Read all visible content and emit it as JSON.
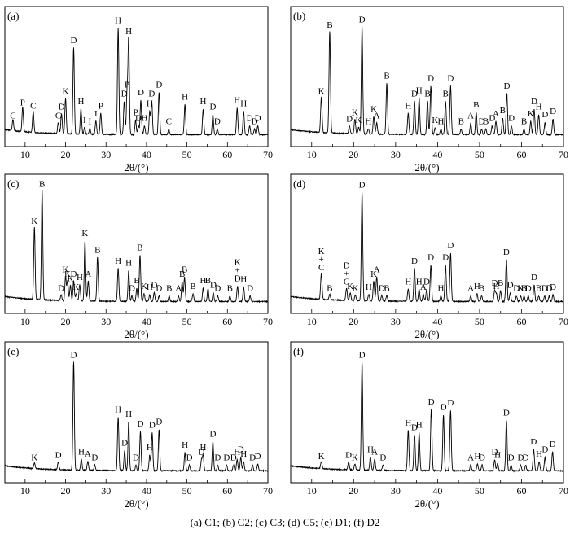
{
  "caption": "(a) C1; (b) C2; (c) C3; (d) C5; (e) D1; (f) D2",
  "chart_data": [
    {
      "type": "line",
      "panel": "(a)",
      "xlabel": "2θ/(°)",
      "xlim": [
        5,
        70
      ],
      "xticks": [
        10,
        20,
        30,
        40,
        50,
        60,
        70
      ],
      "peaks": [
        {
          "x": 7.0,
          "h": 0.1,
          "label": "C"
        },
        {
          "x": 9.4,
          "h": 0.22,
          "label": "P"
        },
        {
          "x": 12.0,
          "h": 0.19,
          "label": "C"
        },
        {
          "x": 18.2,
          "h": 0.1,
          "label": "C"
        },
        {
          "x": 19.0,
          "h": 0.18,
          "label": "D"
        },
        {
          "x": 20.0,
          "h": 0.32,
          "label": "K"
        },
        {
          "x": 22.0,
          "h": 0.78,
          "label": "D"
        },
        {
          "x": 23.8,
          "h": 0.23,
          "label": "H"
        },
        {
          "x": 24.7,
          "h": 0.06,
          "label": "I"
        },
        {
          "x": 26.0,
          "h": 0.05,
          "label": "I"
        },
        {
          "x": 27.5,
          "h": 0.12,
          "label": "I"
        },
        {
          "x": 28.7,
          "h": 0.19,
          "label": "P"
        },
        {
          "x": 33.0,
          "h": 0.96,
          "label": "H"
        },
        {
          "x": 34.5,
          "h": 0.3,
          "label": "D"
        },
        {
          "x": 35.2,
          "h": 0.38,
          "label": "P"
        },
        {
          "x": 35.6,
          "h": 0.86,
          "label": "H"
        },
        {
          "x": 37.3,
          "h": 0.13,
          "label": "P"
        },
        {
          "x": 38.0,
          "h": 0.08,
          "label": "D"
        },
        {
          "x": 38.6,
          "h": 0.31,
          "label": "D"
        },
        {
          "x": 39.5,
          "h": 0.08,
          "label": "H"
        },
        {
          "x": 40.8,
          "h": 0.21,
          "label": "H"
        },
        {
          "x": 41.3,
          "h": 0.3,
          "label": "D"
        },
        {
          "x": 43.1,
          "h": 0.38,
          "label": "D"
        },
        {
          "x": 45.5,
          "h": 0.05,
          "label": "C"
        },
        {
          "x": 49.5,
          "h": 0.27,
          "label": "H"
        },
        {
          "x": 54.0,
          "h": 0.23,
          "label": "H"
        },
        {
          "x": 56.4,
          "h": 0.18,
          "label": "D"
        },
        {
          "x": 57.5,
          "h": 0.05,
          "label": "D"
        },
        {
          "x": 62.4,
          "h": 0.24,
          "label": "H"
        },
        {
          "x": 64.0,
          "h": 0.21,
          "label": "H"
        },
        {
          "x": 65.5,
          "h": 0.08,
          "label": "D"
        },
        {
          "x": 66.7,
          "h": 0.05,
          "label": "D"
        },
        {
          "x": 67.5,
          "h": 0.08,
          "label": "D"
        }
      ]
    },
    {
      "type": "line",
      "panel": "(b)",
      "xlabel": "2θ/(°)",
      "xlim": [
        5,
        70
      ],
      "xticks": [
        10,
        20,
        30,
        40,
        50,
        60,
        70
      ],
      "peaks": [
        {
          "x": 12.3,
          "h": 0.32,
          "label": "K"
        },
        {
          "x": 14.3,
          "h": 0.92,
          "label": "B"
        },
        {
          "x": 19.0,
          "h": 0.07,
          "label": "D"
        },
        {
          "x": 20.3,
          "h": 0.13,
          "label": "K"
        },
        {
          "x": 21.2,
          "h": 0.06,
          "label": "K"
        },
        {
          "x": 22.0,
          "h": 0.97,
          "label": "D"
        },
        {
          "x": 23.5,
          "h": 0.05,
          "label": "H"
        },
        {
          "x": 24.8,
          "h": 0.16,
          "label": "K"
        },
        {
          "x": 25.5,
          "h": 0.1,
          "label": "A"
        },
        {
          "x": 27.9,
          "h": 0.46,
          "label": "B"
        },
        {
          "x": 33.0,
          "h": 0.19,
          "label": "H"
        },
        {
          "x": 34.5,
          "h": 0.3,
          "label": "D"
        },
        {
          "x": 35.6,
          "h": 0.33,
          "label": "H"
        },
        {
          "x": 37.6,
          "h": 0.3,
          "label": "B"
        },
        {
          "x": 38.4,
          "h": 0.44,
          "label": "D"
        },
        {
          "x": 39.4,
          "h": 0.06,
          "label": "K"
        },
        {
          "x": 40.8,
          "h": 0.05,
          "label": "H"
        },
        {
          "x": 41.9,
          "h": 0.3,
          "label": "B"
        },
        {
          "x": 43.1,
          "h": 0.44,
          "label": "D"
        },
        {
          "x": 45.6,
          "h": 0.05,
          "label": "B"
        },
        {
          "x": 47.9,
          "h": 0.1,
          "label": "A"
        },
        {
          "x": 49.2,
          "h": 0.2,
          "label": "B"
        },
        {
          "x": 50.5,
          "h": 0.05,
          "label": "D"
        },
        {
          "x": 51.5,
          "h": 0.05,
          "label": "B"
        },
        {
          "x": 53.0,
          "h": 0.08,
          "label": "D"
        },
        {
          "x": 53.9,
          "h": 0.12,
          "label": "A"
        },
        {
          "x": 55.5,
          "h": 0.15,
          "label": "B"
        },
        {
          "x": 56.5,
          "h": 0.37,
          "label": "D"
        },
        {
          "x": 57.6,
          "h": 0.08,
          "label": "D"
        },
        {
          "x": 60.6,
          "h": 0.05,
          "label": "B"
        },
        {
          "x": 62.2,
          "h": 0.12,
          "label": "K"
        },
        {
          "x": 63.0,
          "h": 0.23,
          "label": "D"
        },
        {
          "x": 64.1,
          "h": 0.18,
          "label": "H"
        },
        {
          "x": 65.6,
          "h": 0.11,
          "label": "D"
        },
        {
          "x": 67.5,
          "h": 0.14,
          "label": "D"
        }
      ]
    },
    {
      "type": "line",
      "panel": "(c)",
      "xlabel": "2θ/(°)",
      "xlim": [
        5,
        70
      ],
      "xticks": [
        10,
        20,
        30,
        40,
        50,
        60,
        70
      ],
      "peaks": [
        {
          "x": 12.3,
          "h": 0.66,
          "label": "K"
        },
        {
          "x": 14.2,
          "h": 1.0,
          "label": "B"
        },
        {
          "x": 18.9,
          "h": 0.05,
          "label": "D"
        },
        {
          "x": 20.0,
          "h": 0.22,
          "label": "K"
        },
        {
          "x": 20.5,
          "h": 0.18,
          "label": "K"
        },
        {
          "x": 21.2,
          "h": 0.14,
          "label": "K"
        },
        {
          "x": 22.0,
          "h": 0.18,
          "label": "D"
        },
        {
          "x": 22.6,
          "h": 0.06,
          "label": "K"
        },
        {
          "x": 23.5,
          "h": 0.15,
          "label": "H"
        },
        {
          "x": 24.8,
          "h": 0.55,
          "label": "K"
        },
        {
          "x": 25.6,
          "h": 0.18,
          "label": "A"
        },
        {
          "x": 27.9,
          "h": 0.4,
          "label": "B"
        },
        {
          "x": 33.0,
          "h": 0.3,
          "label": "H"
        },
        {
          "x": 35.6,
          "h": 0.28,
          "label": "H"
        },
        {
          "x": 36.4,
          "h": 0.05,
          "label": "D"
        },
        {
          "x": 37.6,
          "h": 0.12,
          "label": "B"
        },
        {
          "x": 38.4,
          "h": 0.42,
          "label": "B"
        },
        {
          "x": 39.4,
          "h": 0.07,
          "label": "K"
        },
        {
          "x": 40.8,
          "h": 0.06,
          "label": "H"
        },
        {
          "x": 41.9,
          "h": 0.08,
          "label": "D"
        },
        {
          "x": 43.1,
          "h": 0.05,
          "label": "D"
        },
        {
          "x": 45.6,
          "h": 0.05,
          "label": "B"
        },
        {
          "x": 47.9,
          "h": 0.05,
          "label": "A"
        },
        {
          "x": 48.8,
          "h": 0.18,
          "label": "B"
        },
        {
          "x": 49.4,
          "h": 0.22,
          "label": "B"
        },
        {
          "x": 51.5,
          "h": 0.07,
          "label": "B"
        },
        {
          "x": 54.0,
          "h": 0.12,
          "label": "H"
        },
        {
          "x": 55.2,
          "h": 0.12,
          "label": "B"
        },
        {
          "x": 56.5,
          "h": 0.08,
          "label": "D"
        },
        {
          "x": 57.6,
          "h": 0.05,
          "label": "D"
        },
        {
          "x": 60.6,
          "h": 0.05,
          "label": "B"
        },
        {
          "x": 62.5,
          "h": 0.14,
          "label": "K+D"
        },
        {
          "x": 64.0,
          "h": 0.13,
          "label": "H"
        },
        {
          "x": 65.6,
          "h": 0.05,
          "label": "D"
        }
      ]
    },
    {
      "type": "line",
      "panel": "(d)",
      "xlabel": "2θ/(°)",
      "xlim": [
        5,
        70
      ],
      "xticks": [
        10,
        20,
        30,
        40,
        50,
        60,
        70
      ],
      "peaks": [
        {
          "x": 12.3,
          "h": 0.24,
          "label": "K+C"
        },
        {
          "x": 14.3,
          "h": 0.05,
          "label": "B"
        },
        {
          "x": 18.3,
          "h": 0.11,
          "label": "D+C"
        },
        {
          "x": 19.2,
          "h": 0.07,
          "label": "K"
        },
        {
          "x": 20.4,
          "h": 0.05,
          "label": "K"
        },
        {
          "x": 22.0,
          "h": 0.99,
          "label": "D"
        },
        {
          "x": 23.6,
          "h": 0.06,
          "label": "H"
        },
        {
          "x": 24.8,
          "h": 0.18,
          "label": "K"
        },
        {
          "x": 25.5,
          "h": 0.22,
          "label": "A"
        },
        {
          "x": 26.7,
          "h": 0.05,
          "label": "D"
        },
        {
          "x": 27.9,
          "h": 0.05,
          "label": "B"
        },
        {
          "x": 33.0,
          "h": 0.11,
          "label": "H"
        },
        {
          "x": 34.5,
          "h": 0.3,
          "label": "D"
        },
        {
          "x": 35.6,
          "h": 0.11,
          "label": "H"
        },
        {
          "x": 36.6,
          "h": 0.06,
          "label": "A"
        },
        {
          "x": 37.4,
          "h": 0.11,
          "label": "D"
        },
        {
          "x": 38.4,
          "h": 0.33,
          "label": "D"
        },
        {
          "x": 40.8,
          "h": 0.05,
          "label": "H"
        },
        {
          "x": 41.9,
          "h": 0.33,
          "label": "D"
        },
        {
          "x": 43.1,
          "h": 0.44,
          "label": "D"
        },
        {
          "x": 47.9,
          "h": 0.05,
          "label": "A"
        },
        {
          "x": 49.4,
          "h": 0.07,
          "label": "H"
        },
        {
          "x": 50.5,
          "h": 0.05,
          "label": "B"
        },
        {
          "x": 53.6,
          "h": 0.1,
          "label": "D"
        },
        {
          "x": 54.0,
          "h": 0.07,
          "label": "H"
        },
        {
          "x": 55.0,
          "h": 0.1,
          "label": "B"
        },
        {
          "x": 56.4,
          "h": 0.38,
          "label": "D"
        },
        {
          "x": 57.3,
          "h": 0.08,
          "label": "D"
        },
        {
          "x": 58.8,
          "h": 0.05,
          "label": "D"
        },
        {
          "x": 59.8,
          "h": 0.05,
          "label": "K"
        },
        {
          "x": 60.6,
          "h": 0.05,
          "label": "B"
        },
        {
          "x": 61.6,
          "h": 0.05,
          "label": "D"
        },
        {
          "x": 63.0,
          "h": 0.15,
          "label": "D"
        },
        {
          "x": 64.1,
          "h": 0.05,
          "label": "B"
        },
        {
          "x": 65.5,
          "h": 0.05,
          "label": "D"
        },
        {
          "x": 66.6,
          "h": 0.05,
          "label": "D"
        },
        {
          "x": 67.5,
          "h": 0.06,
          "label": "D"
        }
      ]
    },
    {
      "type": "line",
      "panel": "(e)",
      "xlabel": "2θ/(°)",
      "xlim": [
        5,
        70
      ],
      "xticks": [
        10,
        20,
        30,
        40,
        50,
        60,
        70
      ],
      "peaks": [
        {
          "x": 12.3,
          "h": 0.05,
          "label": "K"
        },
        {
          "x": 18.2,
          "h": 0.07,
          "label": "D"
        },
        {
          "x": 22.0,
          "h": 0.97,
          "label": "D"
        },
        {
          "x": 23.9,
          "h": 0.1,
          "label": "H"
        },
        {
          "x": 25.5,
          "h": 0.08,
          "label": "A"
        },
        {
          "x": 27.2,
          "h": 0.05,
          "label": "D"
        },
        {
          "x": 33.0,
          "h": 0.48,
          "label": "H"
        },
        {
          "x": 34.6,
          "h": 0.18,
          "label": "D"
        },
        {
          "x": 35.6,
          "h": 0.44,
          "label": "H"
        },
        {
          "x": 37.4,
          "h": 0.05,
          "label": "D"
        },
        {
          "x": 38.5,
          "h": 0.35,
          "label": "D"
        },
        {
          "x": 40.8,
          "h": 0.14,
          "label": "H"
        },
        {
          "x": 41.4,
          "h": 0.34,
          "label": "D"
        },
        {
          "x": 43.1,
          "h": 0.37,
          "label": "D"
        },
        {
          "x": 49.5,
          "h": 0.16,
          "label": "H"
        },
        {
          "x": 50.6,
          "h": 0.05,
          "label": "D"
        },
        {
          "x": 53.6,
          "h": 0.1,
          "label": "D"
        },
        {
          "x": 54.0,
          "h": 0.14,
          "label": "H"
        },
        {
          "x": 56.4,
          "h": 0.26,
          "label": "D"
        },
        {
          "x": 57.6,
          "h": 0.05,
          "label": "D"
        },
        {
          "x": 59.8,
          "h": 0.05,
          "label": "D"
        },
        {
          "x": 61.5,
          "h": 0.05,
          "label": "D"
        },
        {
          "x": 62.4,
          "h": 0.1,
          "label": "H"
        },
        {
          "x": 63.3,
          "h": 0.12,
          "label": "D"
        },
        {
          "x": 64.0,
          "h": 0.08,
          "label": "H"
        },
        {
          "x": 66.2,
          "h": 0.05,
          "label": "D"
        },
        {
          "x": 67.5,
          "h": 0.06,
          "label": "D"
        }
      ]
    },
    {
      "type": "line",
      "panel": "(f)",
      "xlabel": "2θ/(°)",
      "xlim": [
        5,
        70
      ],
      "xticks": [
        10,
        20,
        30,
        40,
        50,
        60,
        70
      ],
      "peaks": [
        {
          "x": 12.3,
          "h": 0.06,
          "label": "K"
        },
        {
          "x": 18.8,
          "h": 0.07,
          "label": "D"
        },
        {
          "x": 20.3,
          "h": 0.05,
          "label": "K"
        },
        {
          "x": 22.0,
          "h": 0.97,
          "label": "D"
        },
        {
          "x": 24.0,
          "h": 0.12,
          "label": "H"
        },
        {
          "x": 25.0,
          "h": 0.1,
          "label": "A"
        },
        {
          "x": 27.0,
          "h": 0.05,
          "label": "D"
        },
        {
          "x": 33.0,
          "h": 0.36,
          "label": "H"
        },
        {
          "x": 34.5,
          "h": 0.32,
          "label": "D"
        },
        {
          "x": 35.6,
          "h": 0.34,
          "label": "H"
        },
        {
          "x": 38.5,
          "h": 0.55,
          "label": "D"
        },
        {
          "x": 41.4,
          "h": 0.5,
          "label": "D"
        },
        {
          "x": 43.1,
          "h": 0.54,
          "label": "D"
        },
        {
          "x": 47.9,
          "h": 0.05,
          "label": "A"
        },
        {
          "x": 49.5,
          "h": 0.06,
          "label": "H"
        },
        {
          "x": 50.6,
          "h": 0.05,
          "label": "D"
        },
        {
          "x": 53.6,
          "h": 0.1,
          "label": "D"
        },
        {
          "x": 54.3,
          "h": 0.07,
          "label": "H"
        },
        {
          "x": 56.4,
          "h": 0.45,
          "label": "D"
        },
        {
          "x": 57.5,
          "h": 0.05,
          "label": "D"
        },
        {
          "x": 59.8,
          "h": 0.05,
          "label": "D"
        },
        {
          "x": 61.0,
          "h": 0.05,
          "label": "D"
        },
        {
          "x": 62.9,
          "h": 0.19,
          "label": "D"
        },
        {
          "x": 64.2,
          "h": 0.08,
          "label": "H"
        },
        {
          "x": 65.6,
          "h": 0.12,
          "label": "D"
        },
        {
          "x": 67.4,
          "h": 0.17,
          "label": "D"
        }
      ]
    }
  ]
}
